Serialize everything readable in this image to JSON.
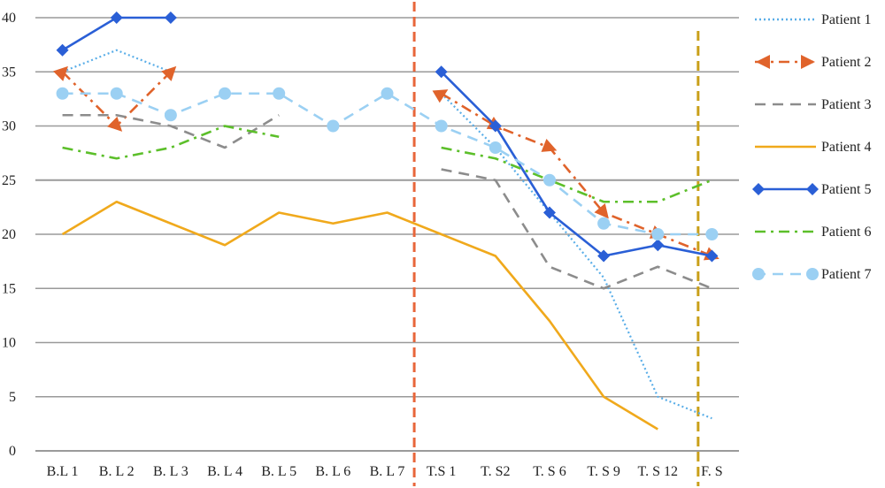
{
  "chart_data": {
    "type": "line",
    "title": "",
    "xlabel": "",
    "ylabel": "",
    "categories": [
      "B.L 1",
      "B. L 2",
      "B. L 3",
      "B. L 4",
      "B. L 5",
      "B. L 6",
      "B. L 7",
      "T.S 1",
      "T. S2",
      "T. S 6",
      "T. S 9",
      "T. S 12",
      "F. S"
    ],
    "yticks": [
      "0",
      "5",
      "10",
      "15",
      "20",
      "25",
      "30",
      "35",
      "40"
    ],
    "ylim": [
      0,
      40
    ],
    "grid": true,
    "legend_position": "right",
    "series": [
      {
        "name": "Patient 1",
        "color": "#5aaee8",
        "dash": "dotted",
        "marker": "none",
        "values": [
          35,
          37,
          35,
          null,
          null,
          null,
          null,
          33,
          28,
          22,
          16,
          5,
          3
        ]
      },
      {
        "name": "Patient 2",
        "color": "#e0632b",
        "dash": "dashdot",
        "marker": "arrow",
        "values": [
          35,
          30,
          35,
          null,
          null,
          null,
          null,
          33,
          30,
          28,
          22,
          20,
          18
        ]
      },
      {
        "name": "Patient 3",
        "color": "#8c8c8c",
        "dash": "dashed",
        "marker": "none",
        "values": [
          31,
          31,
          30,
          28,
          31,
          null,
          null,
          26,
          25,
          17,
          15,
          17,
          15
        ]
      },
      {
        "name": "Patient 4",
        "color": "#f0a91c",
        "dash": "solid",
        "marker": "none",
        "values": [
          20,
          23,
          21,
          19,
          22,
          21,
          22,
          20,
          18,
          12,
          5,
          2,
          null
        ]
      },
      {
        "name": "Patient 5",
        "color": "#2a5fd6",
        "dash": "solid",
        "marker": "diamond",
        "values": [
          37,
          40,
          40,
          null,
          null,
          null,
          null,
          35,
          30,
          22,
          18,
          19,
          18
        ]
      },
      {
        "name": "Patient 6",
        "color": "#5cbf2a",
        "dash": "dashdot",
        "marker": "none",
        "values": [
          28,
          27,
          28,
          30,
          29,
          null,
          null,
          28,
          27,
          25,
          23,
          23,
          25
        ]
      },
      {
        "name": "Patient 7",
        "color": "#9bd0f3",
        "dash": "dashed",
        "marker": "circle",
        "values": [
          33,
          33,
          31,
          33,
          33,
          30,
          33,
          30,
          28,
          25,
          21,
          20,
          20
        ]
      }
    ],
    "vertical_markers": [
      {
        "between": [
          "B. L 7",
          "T.S 1"
        ],
        "color": "#e8663a"
      },
      {
        "between": [
          "T. S 12",
          "F. S"
        ],
        "color": "#c9a01a"
      }
    ]
  }
}
